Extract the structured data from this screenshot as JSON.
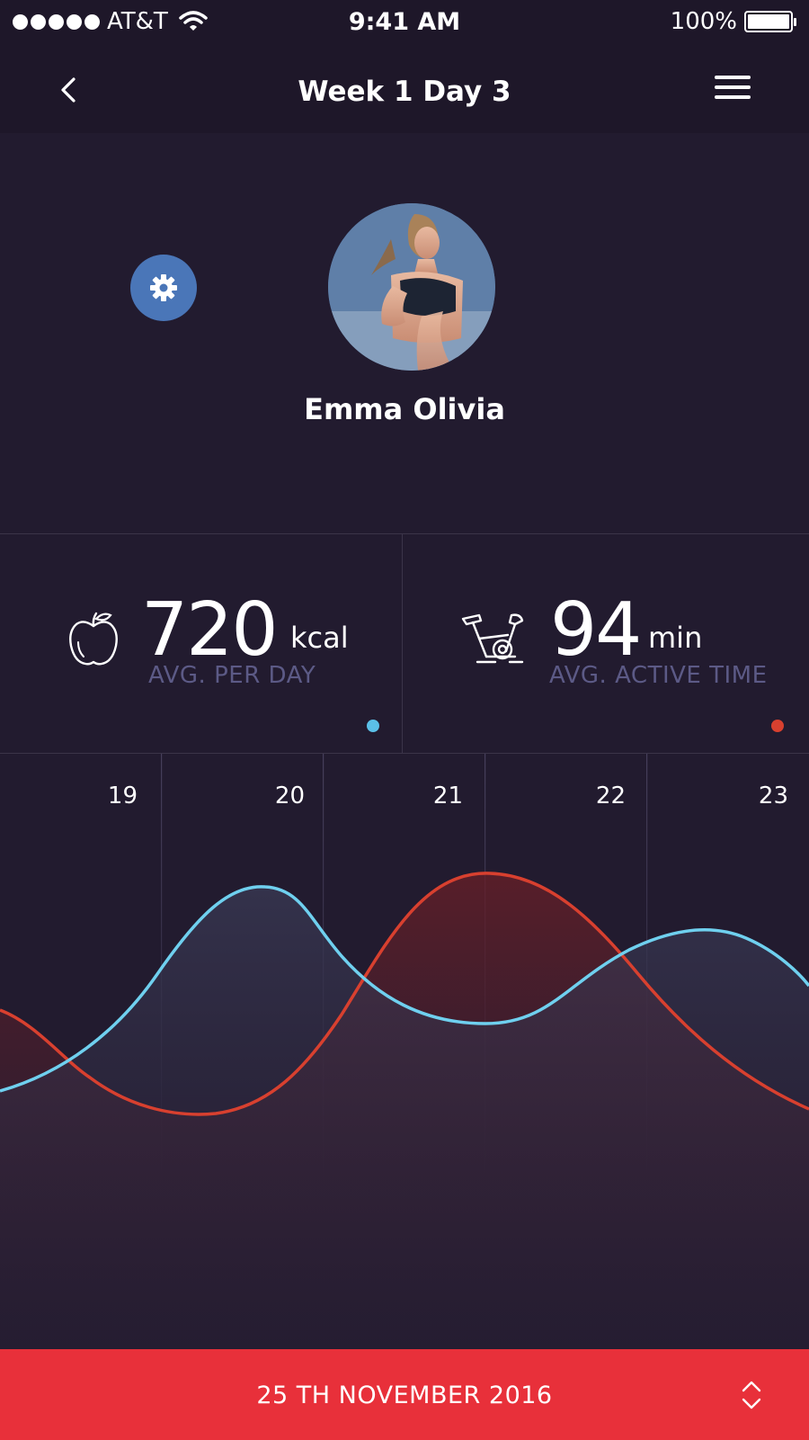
{
  "status_bar": {
    "carrier": "AT&T",
    "time": "9:41 AM",
    "battery": "100%"
  },
  "nav": {
    "title": "Week 1 Day 3"
  },
  "profile": {
    "name": "Emma Olivia"
  },
  "stats": [
    {
      "value": "720",
      "unit": "kcal",
      "label": "AVG. PER DAY",
      "icon": "apple-icon",
      "color": "#5bc0e8"
    },
    {
      "value": "94",
      "unit": "min",
      "label": "AVG. ACTIVE TIME",
      "icon": "exercise-bike-icon",
      "color": "#d8402f"
    }
  ],
  "chart_data": {
    "type": "area",
    "categories": [
      "19",
      "20",
      "21",
      "22",
      "23"
    ],
    "series": [
      {
        "color": "#6fd0ef"
      },
      {
        "color": "#d8402f"
      }
    ]
  },
  "footer": {
    "date": "25 TH NOVEMBER 2016"
  },
  "colors": {
    "background": "#221b2f",
    "accent_blue": "#4a76b8",
    "footer_red": "#e8303a"
  }
}
